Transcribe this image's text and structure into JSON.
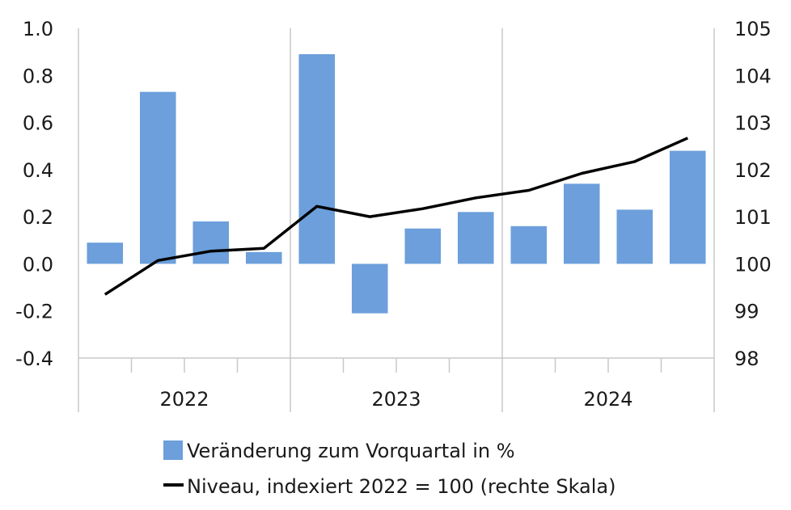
{
  "chart_data": {
    "type": "bar+line",
    "groups": [
      "2022",
      "2023",
      "2024"
    ],
    "quarters_per_group": 4,
    "y_left": {
      "min": -0.4,
      "max": 1.0,
      "step": 0.2,
      "tick_labels": [
        "-0.4",
        "-0.2",
        "0.0",
        "0.2",
        "0.4",
        "0.6",
        "0.8",
        "1.0"
      ]
    },
    "y_right": {
      "min": 98,
      "max": 105,
      "step": 1,
      "tick_labels": [
        "98",
        "99",
        "100",
        "101",
        "102",
        "103",
        "104",
        "105"
      ]
    },
    "grid": "vertical-at-year-boundaries",
    "legend_position": "bottom",
    "series": [
      {
        "name": "Veränderung zum Vorquartal in %",
        "type": "bar",
        "axis": "left",
        "color": "#6c9fdb",
        "values": [
          0.09,
          0.73,
          0.18,
          0.05,
          0.89,
          -0.21,
          0.15,
          0.22,
          0.16,
          0.34,
          0.23,
          0.48
        ]
      },
      {
        "name": "Niveau, indexiert 2022 = 100 (rechte Skala)",
        "type": "line",
        "axis": "right",
        "color": "#000000",
        "values": [
          99.35,
          100.07,
          100.27,
          100.33,
          101.22,
          101.0,
          101.17,
          101.4,
          101.56,
          101.92,
          102.17,
          102.67
        ]
      }
    ]
  }
}
